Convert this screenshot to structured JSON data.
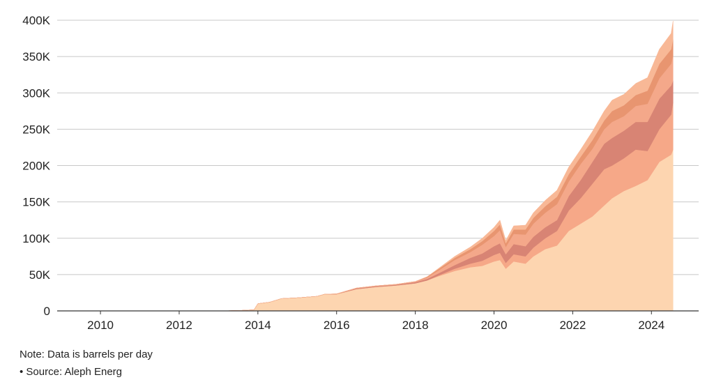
{
  "chart_data": {
    "type": "area",
    "stacked": true,
    "title": "",
    "xlabel": "",
    "ylabel": "",
    "xlim": [
      2008.9,
      2025.2
    ],
    "ylim": [
      0,
      400000
    ],
    "grid": true,
    "x_ticks": [
      2010,
      2012,
      2014,
      2016,
      2018,
      2020,
      2022,
      2024
    ],
    "x_tick_labels": [
      "2010",
      "2012",
      "2014",
      "2016",
      "2018",
      "2020",
      "2022",
      "2024"
    ],
    "y_ticks": [
      0,
      50000,
      100000,
      150000,
      200000,
      250000,
      300000,
      350000,
      400000
    ],
    "y_tick_labels": [
      "0",
      "50K",
      "100K",
      "150K",
      "200K",
      "250K",
      "300K",
      "350K",
      "400K"
    ],
    "x": [
      2013.0,
      2013.5,
      2013.9,
      2014.0,
      2014.3,
      2014.6,
      2015.0,
      2015.5,
      2015.7,
      2016.0,
      2016.5,
      2017.0,
      2017.5,
      2018.0,
      2018.3,
      2018.6,
      2019.0,
      2019.4,
      2019.7,
      2020.0,
      2020.15,
      2020.3,
      2020.5,
      2020.8,
      2021.0,
      2021.3,
      2021.6,
      2021.9,
      2022.2,
      2022.5,
      2022.8,
      2023.0,
      2023.3,
      2023.6,
      2023.9,
      2024.2,
      2024.5,
      2024.55
    ],
    "series": [
      {
        "color": "#FDD5B0",
        "values": [
          0,
          500,
          1500,
          10000,
          12000,
          17000,
          18000,
          20000,
          23000,
          23000,
          30000,
          33000,
          35000,
          38000,
          42000,
          48000,
          55000,
          60000,
          62000,
          68000,
          70000,
          58000,
          68000,
          65000,
          75000,
          85000,
          90000,
          110000,
          120000,
          130000,
          145000,
          155000,
          165000,
          172000,
          180000,
          205000,
          215000,
          222000
        ]
      },
      {
        "color": "#F6A888",
        "values": [
          0,
          0,
          0,
          0,
          0,
          0,
          0,
          0,
          0,
          0,
          0,
          0,
          0,
          0,
          0,
          1000,
          3000,
          5000,
          7000,
          9000,
          10000,
          8000,
          10000,
          10000,
          12000,
          15000,
          20000,
          28000,
          35000,
          45000,
          50000,
          45000,
          45000,
          50000,
          40000,
          45000,
          55000,
          65000
        ]
      },
      {
        "color": "#D88474",
        "values": [
          0,
          0,
          0,
          0,
          0,
          0,
          0,
          0,
          0,
          0,
          1000,
          1000,
          1000,
          1500,
          2000,
          3000,
          5000,
          8000,
          10000,
          12000,
          13000,
          12000,
          14000,
          14000,
          15000,
          15000,
          15000,
          20000,
          25000,
          30000,
          35000,
          38000,
          38000,
          38000,
          40000,
          42000,
          40000,
          30000
        ]
      },
      {
        "color": "#F4A88A",
        "values": [
          0,
          0,
          0,
          0,
          0,
          0,
          0,
          0,
          0,
          500,
          500,
          500,
          500,
          1000,
          2000,
          4000,
          7000,
          8000,
          12000,
          14000,
          18000,
          10000,
          14000,
          16000,
          18000,
          20000,
          22000,
          20000,
          22000,
          18000,
          20000,
          22000,
          20000,
          22000,
          25000,
          28000,
          30000,
          35000
        ]
      },
      {
        "color": "#E89570",
        "values": [
          0,
          0,
          0,
          0,
          0,
          0,
          0,
          0,
          0,
          0,
          0,
          0,
          0,
          0,
          1000,
          2000,
          3000,
          4000,
          5000,
          7000,
          8000,
          5000,
          6000,
          7000,
          8000,
          9000,
          10000,
          10000,
          10000,
          12000,
          12000,
          15000,
          15000,
          15000,
          18000,
          20000,
          20000,
          22000
        ]
      },
      {
        "color": "#F8B896",
        "values": [
          0,
          0,
          0,
          0,
          0,
          0,
          0,
          0,
          0,
          0,
          0,
          0,
          0,
          0,
          0,
          1000,
          2000,
          3000,
          4000,
          5000,
          6000,
          4000,
          5000,
          6000,
          7000,
          8000,
          9000,
          10000,
          10000,
          12000,
          13000,
          15000,
          15000,
          16000,
          18000,
          20000,
          22000,
          25000
        ]
      }
    ]
  },
  "footer": {
    "note": "Note: Data is barrels per day",
    "source": "• Source: Aleph Energ"
  }
}
